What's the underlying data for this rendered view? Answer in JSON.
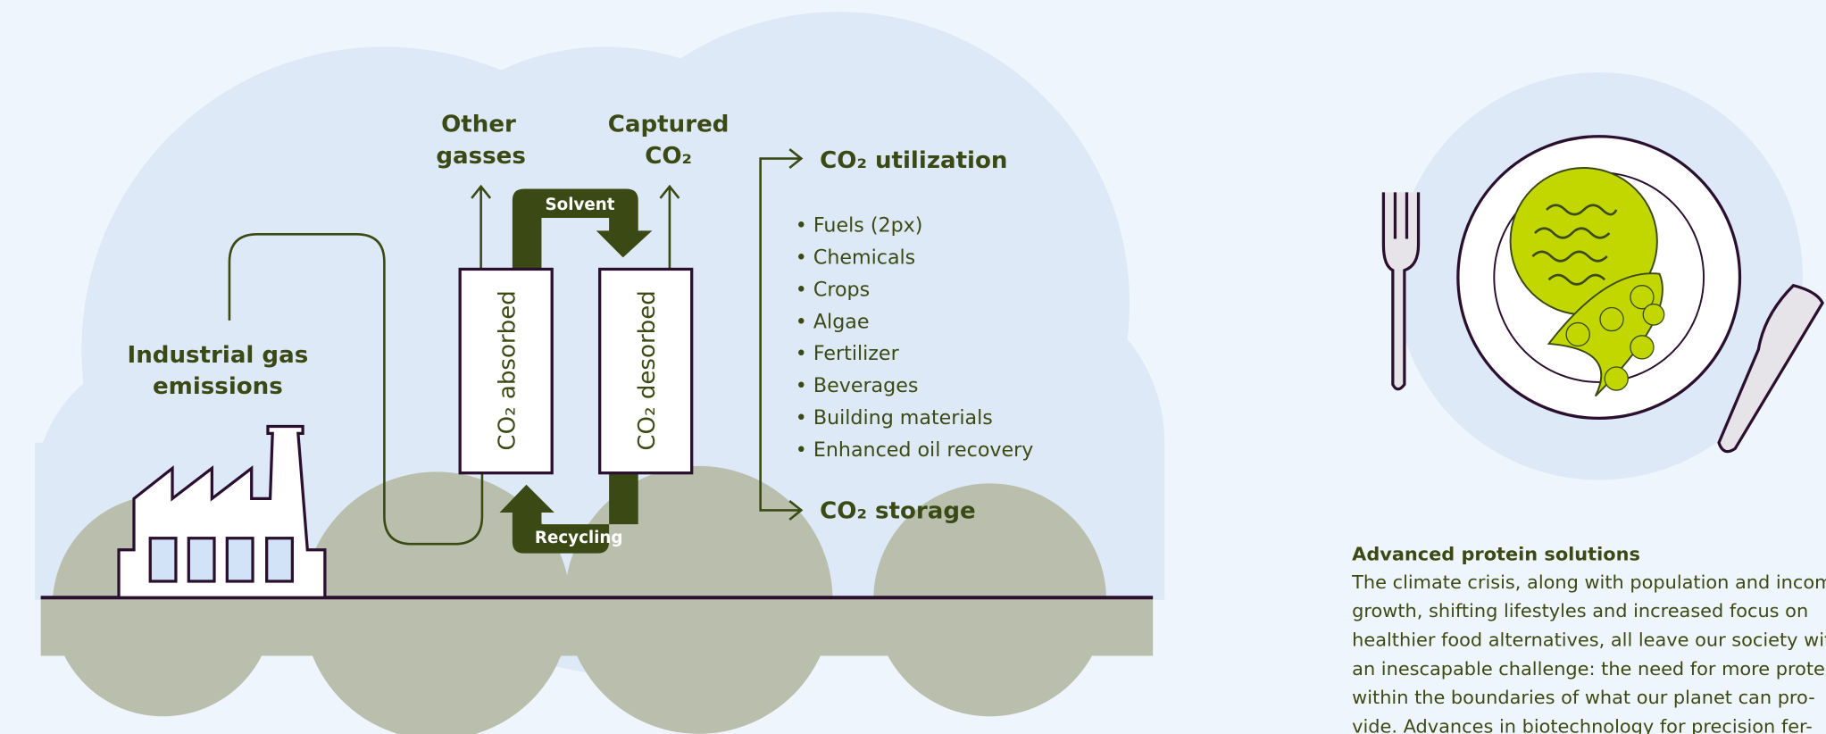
{
  "diagram": {
    "other_gasses": [
      "Other",
      "gasses"
    ],
    "captured": [
      "Captured",
      "CO₂"
    ],
    "solvent": "Solvent",
    "recycling": "Recycling",
    "absorbed": "CO₂ absorbed",
    "desorbed": "CO₂ desorbed",
    "utilization": "CO₂ utilization",
    "uses": [
      "• Fuels (2px)",
      "• Chemicals",
      "• Crops",
      "• Algae",
      "• Fertilizer",
      "• Beverages",
      "• Building materials",
      "• Enhanced oil recovery"
    ],
    "storage": "CO₂ storage",
    "source": [
      "Industrial gas",
      "emissions"
    ]
  },
  "article": {
    "heading": "Advanced protein solutions",
    "lines": [
      "The climate crisis, along with population and income",
      "growth, shifting lifestyles and increased focus on",
      "healthier food alternatives, all leave our society with",
      "an inescapable challenge: the need for more protein",
      "within the boundaries of what our planet can pro-",
      "vide. Advances in biotechnology for precision fer-"
    ]
  }
}
